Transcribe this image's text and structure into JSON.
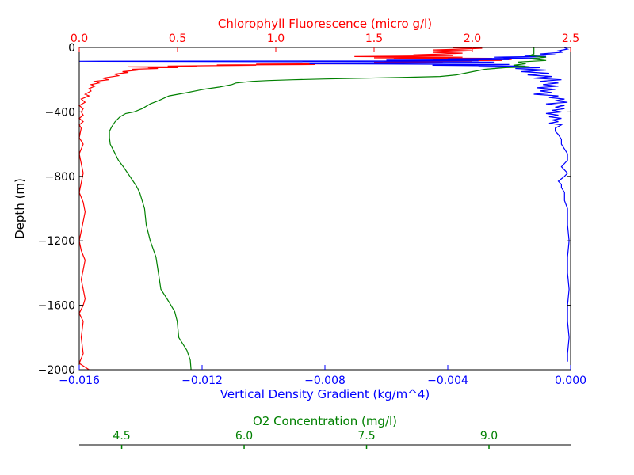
{
  "colors": {
    "fluorescence": "#ff0000",
    "density": "#0000ff",
    "oxygen": "#008000",
    "axis": "#000000"
  },
  "chart_data": {
    "type": "line",
    "grid": false,
    "y_axis": {
      "label": "Depth (m)",
      "range": [
        -2000,
        0
      ],
      "ticks": [
        0,
        -400,
        -800,
        -1200,
        -1600,
        -2000
      ],
      "tick_labels": [
        "0",
        "−400",
        "−800",
        "−1200",
        "−1600",
        "−2000"
      ]
    },
    "axes": {
      "fluorescence": {
        "label": "Chlorophyll Fluorescence (micro g/l)",
        "position": "top",
        "range": [
          0,
          2.5
        ],
        "ticks": [
          0,
          0.5,
          1.0,
          1.5,
          2.0,
          2.5
        ],
        "tick_labels": [
          "0.0",
          "0.5",
          "1.0",
          "1.5",
          "2.0",
          "2.5"
        ]
      },
      "density": {
        "label": "Vertical Density Gradient (kg/m^4)",
        "position": "bottom",
        "range": [
          -0.016,
          0
        ],
        "ticks": [
          -0.016,
          -0.012,
          -0.008,
          -0.004,
          0
        ],
        "tick_labels": [
          "−0.016",
          "−0.012",
          "−0.008",
          "−0.004",
          "0.000"
        ]
      },
      "oxygen": {
        "label": "O2 Concentration (mg/l)",
        "position": "bottom-offset",
        "range": [
          3.98,
          10.0
        ],
        "ticks": [
          4.5,
          6.0,
          7.5,
          9.0
        ],
        "tick_labels": [
          "4.5",
          "6.0",
          "7.5",
          "9.0"
        ]
      }
    },
    "series": [
      {
        "axis": "fluorescence",
        "points": [
          [
            0.05,
            -2000
          ],
          [
            0.0,
            -1960
          ],
          [
            0.02,
            -1900
          ],
          [
            0.01,
            -1800
          ],
          [
            0.02,
            -1700
          ],
          [
            0.0,
            -1650
          ],
          [
            0.02,
            -1600
          ],
          [
            0.03,
            -1560
          ],
          [
            0.02,
            -1500
          ],
          [
            0.01,
            -1440
          ],
          [
            0.02,
            -1380
          ],
          [
            0.03,
            -1320
          ],
          [
            0.01,
            -1260
          ],
          [
            0.0,
            -1200
          ],
          [
            0.01,
            -1140
          ],
          [
            0.02,
            -1080
          ],
          [
            0.03,
            -1020
          ],
          [
            0.02,
            -960
          ],
          [
            0.0,
            -900
          ],
          [
            0.01,
            -840
          ],
          [
            0.02,
            -780
          ],
          [
            0.01,
            -720
          ],
          [
            0.0,
            -660
          ],
          [
            0.02,
            -600
          ],
          [
            0.0,
            -560
          ],
          [
            0.01,
            -500
          ],
          [
            0.0,
            -480
          ],
          [
            0.02,
            -460
          ],
          [
            0.0,
            -440
          ],
          [
            0.02,
            -420
          ],
          [
            0.01,
            -400
          ],
          [
            0.02,
            -380
          ],
          [
            0.0,
            -360
          ],
          [
            0.03,
            -340
          ],
          [
            0.01,
            -320
          ],
          [
            0.05,
            -300
          ],
          [
            0.03,
            -290
          ],
          [
            0.06,
            -270
          ],
          [
            0.05,
            -255
          ],
          [
            0.08,
            -240
          ],
          [
            0.06,
            -230
          ],
          [
            0.1,
            -220
          ],
          [
            0.08,
            -210
          ],
          [
            0.15,
            -200
          ],
          [
            0.12,
            -190
          ],
          [
            0.2,
            -175
          ],
          [
            0.18,
            -165
          ],
          [
            0.25,
            -155
          ],
          [
            0.22,
            -150
          ],
          [
            0.3,
            -140
          ],
          [
            0.27,
            -135
          ],
          [
            0.4,
            -130
          ],
          [
            0.35,
            -125
          ],
          [
            0.5,
            -125
          ],
          [
            0.25,
            -120
          ],
          [
            0.6,
            -120
          ],
          [
            0.45,
            -115
          ],
          [
            0.9,
            -110
          ],
          [
            0.7,
            -108
          ],
          [
            1.2,
            -105
          ],
          [
            0.9,
            -102
          ],
          [
            1.45,
            -100
          ],
          [
            1.2,
            -98
          ],
          [
            1.65,
            -95
          ],
          [
            1.5,
            -92
          ],
          [
            1.85,
            -90
          ],
          [
            1.55,
            -87
          ],
          [
            2.0,
            -85
          ],
          [
            1.7,
            -82
          ],
          [
            2.15,
            -80
          ],
          [
            1.8,
            -77
          ],
          [
            2.2,
            -74
          ],
          [
            1.6,
            -70
          ],
          [
            2.1,
            -67
          ],
          [
            1.5,
            -64
          ],
          [
            1.95,
            -60
          ],
          [
            1.4,
            -56
          ],
          [
            1.9,
            -50
          ],
          [
            1.7,
            -45
          ],
          [
            1.85,
            -40
          ],
          [
            1.95,
            -35
          ],
          [
            1.8,
            -30
          ],
          [
            1.9,
            -25
          ],
          [
            2.0,
            -20
          ],
          [
            1.8,
            -15
          ],
          [
            1.95,
            -10
          ],
          [
            2.05,
            -5
          ],
          [
            1.9,
            -2
          ]
        ]
      },
      {
        "axis": "density",
        "points": [
          [
            -0.0001,
            -1950
          ],
          [
            -0.0001,
            -1900
          ],
          [
            -5e-05,
            -1800
          ],
          [
            -0.0001,
            -1700
          ],
          [
            -0.0001,
            -1600
          ],
          [
            -5e-05,
            -1500
          ],
          [
            -0.0001,
            -1400
          ],
          [
            -0.0001,
            -1300
          ],
          [
            -5e-05,
            -1200
          ],
          [
            -0.0001,
            -1100
          ],
          [
            -0.0001,
            -1000
          ],
          [
            -0.0002,
            -950
          ],
          [
            -0.0002,
            -900
          ],
          [
            -0.0003,
            -870
          ],
          [
            -0.0003,
            -850
          ],
          [
            -0.0004,
            -830
          ],
          [
            -0.0003,
            -815
          ],
          [
            -0.0002,
            -800
          ],
          [
            -0.0001,
            -780
          ],
          [
            -0.0002,
            -760
          ],
          [
            -0.0003,
            -740
          ],
          [
            -0.0002,
            -720
          ],
          [
            -0.0001,
            -700
          ],
          [
            -0.0001,
            -660
          ],
          [
            -0.0002,
            -630
          ],
          [
            -0.0003,
            -600
          ],
          [
            -0.0003,
            -570
          ],
          [
            -0.0004,
            -540
          ],
          [
            -0.0005,
            -520
          ],
          [
            -0.0005,
            -500
          ],
          [
            -0.0003,
            -480
          ],
          [
            -0.0007,
            -470
          ],
          [
            -0.0004,
            -460
          ],
          [
            -0.0006,
            -450
          ],
          [
            -0.0003,
            -440
          ],
          [
            -0.0007,
            -430
          ],
          [
            -0.0004,
            -420
          ],
          [
            -0.0008,
            -410
          ],
          [
            -0.0003,
            -400
          ],
          [
            -0.0006,
            -390
          ],
          [
            -0.0002,
            -380
          ],
          [
            -0.0005,
            -370
          ],
          [
            -0.0002,
            -360
          ],
          [
            -0.0008,
            -350
          ],
          [
            -0.0001,
            -340
          ],
          [
            -0.0005,
            -330
          ],
          [
            -0.0002,
            -320
          ],
          [
            -0.0007,
            -310
          ],
          [
            -0.0004,
            -300
          ],
          [
            -0.0012,
            -290
          ],
          [
            -0.0006,
            -280
          ],
          [
            -0.001,
            -270
          ],
          [
            -0.0005,
            -260
          ],
          [
            -0.0011,
            -250
          ],
          [
            -0.0004,
            -240
          ],
          [
            -0.0009,
            -230
          ],
          [
            -0.0004,
            -220
          ],
          [
            -0.001,
            -210
          ],
          [
            -0.0003,
            -200
          ],
          [
            -0.0012,
            -190
          ],
          [
            -0.0006,
            -180
          ],
          [
            -0.0014,
            -170
          ],
          [
            -0.0007,
            -160
          ],
          [
            -0.0016,
            -150
          ],
          [
            -0.0008,
            -140
          ],
          [
            -0.0018,
            -130
          ],
          [
            -0.001,
            -125
          ],
          [
            -0.003,
            -120
          ],
          [
            -0.0015,
            -115
          ],
          [
            -0.0045,
            -110
          ],
          [
            -0.002,
            -105
          ],
          [
            -0.0085,
            -100
          ],
          [
            -0.0035,
            -95
          ],
          [
            -0.0025,
            -90
          ],
          [
            -0.016,
            -85
          ],
          [
            -0.003,
            -82
          ],
          [
            -0.006,
            -78
          ],
          [
            -0.002,
            -75
          ],
          [
            -0.004,
            -70
          ],
          [
            -0.001,
            -65
          ],
          [
            -0.0025,
            -60
          ],
          [
            -0.0008,
            -55
          ],
          [
            -0.0015,
            -50
          ],
          [
            -0.0005,
            -45
          ],
          [
            -0.001,
            -40
          ],
          [
            -0.0003,
            -30
          ],
          [
            -0.0004,
            -20
          ],
          [
            -0.0001,
            -10
          ],
          [
            -0.0002,
            -2
          ]
        ]
      },
      {
        "axis": "oxygen",
        "points": [
          [
            5.35,
            -2000
          ],
          [
            5.34,
            -1940
          ],
          [
            5.3,
            -1880
          ],
          [
            5.2,
            -1800
          ],
          [
            5.18,
            -1700
          ],
          [
            5.15,
            -1640
          ],
          [
            5.08,
            -1580
          ],
          [
            4.98,
            -1500
          ],
          [
            4.95,
            -1400
          ],
          [
            4.92,
            -1300
          ],
          [
            4.85,
            -1200
          ],
          [
            4.8,
            -1100
          ],
          [
            4.78,
            -1000
          ],
          [
            4.72,
            -900
          ],
          [
            4.68,
            -860
          ],
          [
            4.6,
            -800
          ],
          [
            4.52,
            -740
          ],
          [
            4.46,
            -700
          ],
          [
            4.4,
            -640
          ],
          [
            4.36,
            -600
          ],
          [
            4.35,
            -560
          ],
          [
            4.35,
            -520
          ],
          [
            4.38,
            -490
          ],
          [
            4.42,
            -460
          ],
          [
            4.48,
            -430
          ],
          [
            4.55,
            -410
          ],
          [
            4.65,
            -400
          ],
          [
            4.75,
            -380
          ],
          [
            4.85,
            -350
          ],
          [
            4.95,
            -330
          ],
          [
            5.08,
            -300
          ],
          [
            5.3,
            -280
          ],
          [
            5.5,
            -260
          ],
          [
            5.7,
            -245
          ],
          [
            5.85,
            -230
          ],
          [
            5.9,
            -220
          ],
          [
            6.1,
            -210
          ],
          [
            6.3,
            -205
          ],
          [
            6.6,
            -200
          ],
          [
            7.0,
            -195
          ],
          [
            7.5,
            -190
          ],
          [
            8.0,
            -185
          ],
          [
            8.4,
            -180
          ],
          [
            8.6,
            -170
          ],
          [
            8.8,
            -150
          ],
          [
            8.95,
            -135
          ],
          [
            9.2,
            -125
          ],
          [
            9.5,
            -120
          ],
          [
            9.3,
            -110
          ],
          [
            9.45,
            -100
          ],
          [
            9.35,
            -90
          ],
          [
            9.7,
            -80
          ],
          [
            9.5,
            -70
          ],
          [
            9.7,
            -60
          ],
          [
            9.5,
            -50
          ],
          [
            9.55,
            -40
          ],
          [
            9.55,
            -20
          ],
          [
            9.55,
            0
          ]
        ]
      }
    ]
  }
}
